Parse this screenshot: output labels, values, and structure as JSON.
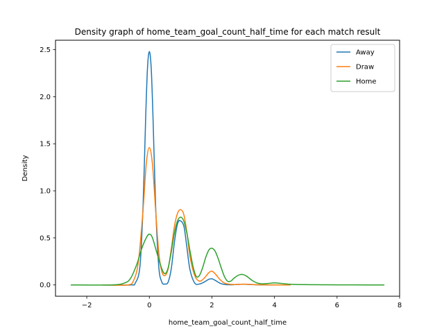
{
  "chart_data": {
    "type": "line",
    "title": "Density graph of home_team_goal_count_half_time for each match result",
    "xlabel": "home_team_goal_count_half_time",
    "ylabel": "Density",
    "xlim": [
      -3.0,
      8.0
    ],
    "ylim": [
      -0.12,
      2.6
    ],
    "x_ticks": [
      -2,
      0,
      2,
      4,
      6,
      8
    ],
    "x_tick_labels": [
      "−2",
      "0",
      "2",
      "4",
      "6",
      "8"
    ],
    "y_ticks": [
      0.0,
      0.5,
      1.0,
      1.5,
      2.0,
      2.5
    ],
    "y_tick_labels": [
      "0.0",
      "0.5",
      "1.0",
      "1.5",
      "2.0",
      "2.5"
    ],
    "grid": false,
    "legend_position": "top-right",
    "series": [
      {
        "name": "Away",
        "color": "#1f77b4",
        "x": [
          -1.5,
          -0.6,
          -0.45,
          -0.3,
          -0.2,
          -0.12,
          -0.06,
          0,
          0.06,
          0.12,
          0.2,
          0.3,
          0.4,
          0.5,
          0.6,
          0.7,
          0.8,
          0.88,
          0.94,
          1.0,
          1.06,
          1.12,
          1.2,
          1.3,
          1.45,
          1.6,
          1.75,
          1.9,
          2.0,
          2.1,
          2.25,
          2.4,
          2.6,
          2.8,
          3.0,
          3.2,
          3.5,
          4.0,
          4.5
        ],
        "y": [
          0.0,
          0.0,
          0.02,
          0.2,
          0.85,
          1.75,
          2.3,
          2.48,
          2.3,
          1.75,
          0.85,
          0.2,
          0.03,
          0.01,
          0.03,
          0.17,
          0.45,
          0.62,
          0.68,
          0.68,
          0.66,
          0.6,
          0.4,
          0.16,
          0.02,
          0.01,
          0.03,
          0.06,
          0.065,
          0.05,
          0.02,
          0.005,
          0.002,
          0.005,
          0.008,
          0.004,
          0.001,
          0.0,
          0.0
        ]
      },
      {
        "name": "Draw",
        "color": "#ff7f0e",
        "x": [
          -1.5,
          -0.7,
          -0.5,
          -0.35,
          -0.2,
          -0.1,
          0,
          0.1,
          0.2,
          0.3,
          0.4,
          0.5,
          0.6,
          0.7,
          0.8,
          0.9,
          1.0,
          1.1,
          1.2,
          1.3,
          1.45,
          1.6,
          1.75,
          1.9,
          2.0,
          2.1,
          2.25,
          2.4,
          2.6,
          2.8,
          3.0,
          3.2,
          3.5,
          4.0,
          4.5
        ],
        "y": [
          0.0,
          0.0,
          0.05,
          0.25,
          0.8,
          1.28,
          1.46,
          1.28,
          0.8,
          0.35,
          0.14,
          0.1,
          0.17,
          0.38,
          0.62,
          0.76,
          0.8,
          0.75,
          0.56,
          0.3,
          0.1,
          0.04,
          0.07,
          0.13,
          0.145,
          0.12,
          0.06,
          0.02,
          0.006,
          0.005,
          0.008,
          0.006,
          0.002,
          0.0,
          0.0
        ]
      },
      {
        "name": "Home",
        "color": "#2ca02c",
        "x": [
          -2.5,
          -1.2,
          -0.8,
          -0.6,
          -0.4,
          -0.25,
          -0.1,
          0,
          0.1,
          0.25,
          0.4,
          0.5,
          0.6,
          0.7,
          0.8,
          0.9,
          1.0,
          1.1,
          1.2,
          1.3,
          1.4,
          1.5,
          1.6,
          1.7,
          1.8,
          1.9,
          2.0,
          2.1,
          2.2,
          2.3,
          2.4,
          2.5,
          2.6,
          2.7,
          2.8,
          2.9,
          3.0,
          3.1,
          3.2,
          3.3,
          3.45,
          3.6,
          3.8,
          4.0,
          4.2,
          4.5,
          5.0,
          5.5,
          6.0,
          7.0,
          7.5
        ],
        "y": [
          0.0,
          0.0,
          0.02,
          0.07,
          0.22,
          0.38,
          0.5,
          0.54,
          0.5,
          0.33,
          0.17,
          0.12,
          0.18,
          0.35,
          0.55,
          0.68,
          0.72,
          0.68,
          0.55,
          0.36,
          0.19,
          0.09,
          0.1,
          0.18,
          0.29,
          0.37,
          0.39,
          0.36,
          0.28,
          0.18,
          0.09,
          0.04,
          0.04,
          0.07,
          0.095,
          0.11,
          0.11,
          0.095,
          0.07,
          0.045,
          0.02,
          0.012,
          0.016,
          0.022,
          0.016,
          0.007,
          0.003,
          0.002,
          0.001,
          0.0,
          0.0
        ]
      }
    ]
  }
}
